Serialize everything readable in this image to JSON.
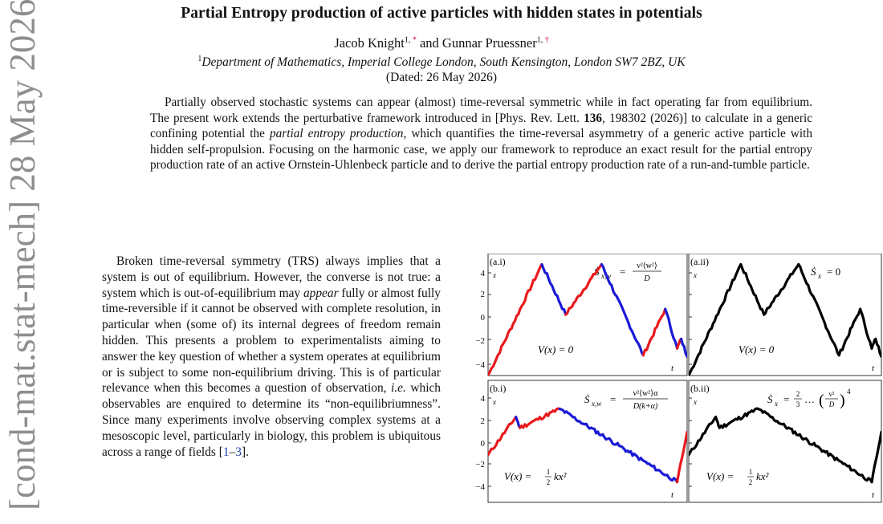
{
  "sidebar": {
    "arxiv_stamp": "[cond-mat.stat-mech] 28 May 2026"
  },
  "header": {
    "title": "Partial Entropy production of active particles with hidden states in potentials",
    "author1": "Jacob Knight",
    "author1_sup": "1, ",
    "author1_fn": "*",
    "author_sep": " and ",
    "author2": "Gunnar Pruessner",
    "author2_sup": "1, ",
    "author2_fn": "†",
    "affil_sup": "1",
    "affiliation": "Department of Mathematics, Imperial College London, South Kensington, London SW7 2BZ, UK",
    "dated": "(Dated: 26 May 2026)"
  },
  "abstract": {
    "part1": "Partially observed stochastic systems can appear (almost) time-reversal symmetric while in fact operating far from equilibrium. The present work extends the perturbative framework introduced in [Phys. Rev. Lett. ",
    "volume": "136",
    "part2": ", 198302 (2026)] to calculate in a generic confining potential the ",
    "em_term": "partial entropy production",
    "part3": ", which quantifies the time-reversal asymmetry of a generic active particle with hidden self-propulsion. Focusing on the harmonic case, we apply our framework to reproduce an exact result for the partial entropy production rate of an active Ornstein-Uhlenbeck particle and to derive the partial entropy production rate of a run-and-tumble particle."
  },
  "body": {
    "part1": "Broken time-reversal symmetry (TRS) always implies that a system is out of equilibrium. However, the converse is not true: a system which is out-of-equilibrium may ",
    "em1": "appear",
    "part2": " fully or almost fully time-reversible if it cannot be observed with complete resolution, in particular when (some of) its internal degrees of freedom remain hidden. This presents a problem to experimentalists aiming to answer the key question of whether a system operates at equilibrium or is subject to some non-equilibrium driving. This is of particular relevance when this becomes a question of observation, ",
    "em2": "i.e.",
    "part3": " which observables are enquired to determine its “non-equilibriumness”. Since many experiments involve observing complex systems at a mesoscopic level, particularly in biology, this problem is ubiquitous across a range of fields [",
    "cite1": "1",
    "cite_sep": "–",
    "cite2": "3",
    "part4": "]."
  },
  "figure": {
    "panels": [
      {
        "label": "(a.i)",
        "equation": "Ṡ_{x,w} = ν²⟨w²⟩/D",
        "potential": "V(x) = 0",
        "time_label": "t"
      },
      {
        "label": "(a.ii)",
        "equation": "Ṡ_x = 0",
        "potential": "V(x) = 0",
        "time_label": "t"
      },
      {
        "label": "(b.i)",
        "equation": "Ṡ_{x,w} = ν²⟨w²⟩α / D(k+α)",
        "potential": "V(x) = ½kx²",
        "time_label": "t"
      },
      {
        "label": "(b.ii)",
        "equation": "Ṡ_x = ⅔ … (ν²/D)⁴",
        "potential": "V(x) = ½kx²",
        "time_label": "t"
      }
    ],
    "y_ticks": [
      "4",
      "2",
      "0",
      "−2",
      "−4"
    ],
    "axis_symbol": "x",
    "eq_a_i": {
      "lhs": "Ṡ",
      "sub": "x,w",
      "eq": "=",
      "num": "ν²⟨w²⟩",
      "den": "D"
    },
    "eq_a_ii": {
      "lhs": "Ṡ",
      "sub": "x",
      "rhs": "= 0"
    },
    "eq_b_i": {
      "lhs": "Ṡ",
      "sub": "x,w",
      "eq": "=",
      "num": "ν²⟨w²⟩α",
      "den": "D(k+α)"
    },
    "eq_b_ii": {
      "lhs": "Ṡ",
      "sub": "x",
      "eq": "=",
      "frac_num": "2",
      "frac_den": "3",
      "dots": "…",
      "inner_num": "ν²",
      "inner_den": "D",
      "power": "4"
    },
    "pot_free": "V(x) = 0",
    "pot_harm_lhs": "V(x) =",
    "pot_harm_num": "1",
    "pot_harm_den": "2",
    "pot_harm_rhs": "kx²",
    "colors": {
      "run_plus": "#e8191c",
      "run_minus": "#1a1ad6",
      "observed": "#000000",
      "frame": "#333333"
    },
    "trajectories": {
      "x_range": [
        0,
        100
      ],
      "y_range": [
        -4.5,
        4.5
      ],
      "a_i": [
        {
          "state": "plus",
          "t": [
            0,
            27
          ],
          "x": [
            -4.5,
            3.7
          ]
        },
        {
          "state": "minus",
          "t": [
            27,
            39
          ],
          "x": [
            3.7,
            0
          ]
        },
        {
          "state": "plus",
          "t": [
            39,
            57
          ],
          "x": [
            0,
            3.7
          ]
        },
        {
          "state": "minus",
          "t": [
            57,
            78
          ],
          "x": [
            3.7,
            -3.0
          ]
        },
        {
          "state": "plus",
          "t": [
            78,
            89
          ],
          "x": [
            -3.0,
            0.4
          ]
        },
        {
          "state": "minus",
          "t": [
            89,
            95
          ],
          "x": [
            0.4,
            -2.5
          ]
        },
        {
          "state": "plus",
          "t": [
            95,
            97
          ],
          "x": [
            -2.5,
            -1.8
          ]
        },
        {
          "state": "minus",
          "t": [
            97,
            100
          ],
          "x": [
            -1.8,
            -3.1
          ]
        }
      ],
      "b_i": [
        {
          "state": "plus",
          "t": [
            0,
            14
          ],
          "x": [
            -1.0,
            1.8
          ]
        },
        {
          "state": "minus",
          "t": [
            14,
            16
          ],
          "x": [
            1.8,
            1.0
          ]
        },
        {
          "state": "plus",
          "t": [
            16,
            36
          ],
          "x": [
            1.0,
            2.4
          ]
        },
        {
          "state": "minus",
          "t": [
            36,
            95
          ],
          "x": [
            2.4,
            -3.0
          ]
        },
        {
          "state": "plus",
          "t": [
            95,
            100
          ],
          "x": [
            -3.0,
            0.7
          ]
        }
      ]
    }
  }
}
